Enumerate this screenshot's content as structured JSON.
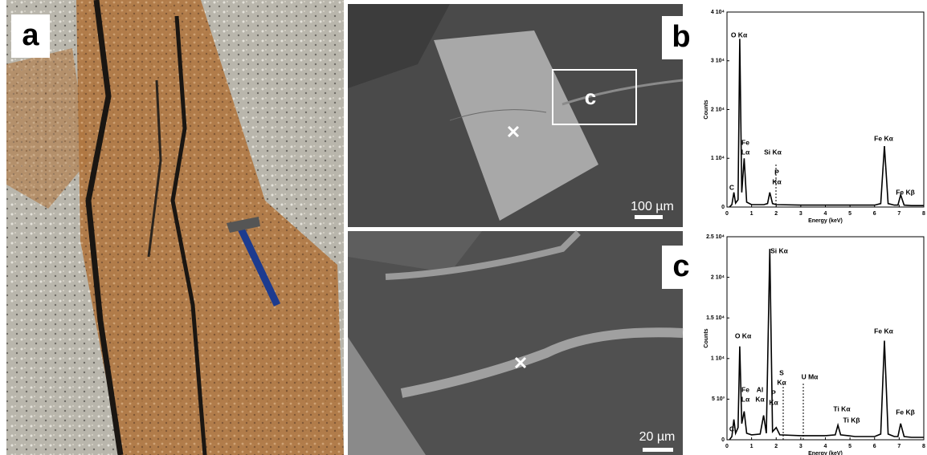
{
  "panels": {
    "a": {
      "label": "a"
    },
    "b": {
      "label": "b",
      "inset_label": "c",
      "scale_bar": "100 µm"
    },
    "c": {
      "label": "c",
      "scale_bar": "20 µm"
    }
  },
  "chart_data": [
    {
      "type": "line",
      "x_label": "Energy (keV)",
      "y_label": "Counts",
      "color": "#000000",
      "x": [
        0.1,
        0.2,
        0.28,
        0.35,
        0.45,
        0.52,
        0.6,
        0.7,
        0.8,
        1.0,
        1.5,
        1.65,
        1.74,
        1.85,
        2.0,
        3,
        4,
        5,
        6,
        6.25,
        6.4,
        6.55,
        6.8,
        6.95,
        7.06,
        7.2,
        7.5,
        8
      ],
      "values": [
        0,
        500,
        3000,
        800,
        1500,
        34500,
        3000,
        10000,
        1000,
        500,
        500,
        700,
        3000,
        700,
        500,
        400,
        400,
        400,
        400,
        700,
        12500,
        700,
        400,
        400,
        2500,
        400,
        300,
        300
      ],
      "xlim": [
        0,
        8
      ],
      "xticks": [
        0,
        1,
        2,
        3,
        4,
        5,
        6,
        7,
        8
      ],
      "ylim": [
        0,
        40000
      ],
      "yticks": [
        0,
        {
          "value": 10000,
          "label": "1 10⁴"
        },
        {
          "value": 20000,
          "label": "2 10⁴"
        },
        {
          "value": 30000,
          "label": "3 10⁴"
        },
        {
          "value": 40000,
          "label": "4 10⁴"
        }
      ],
      "annotations": [
        [
          "O Kα"
        ],
        [
          "Fe",
          "Lα"
        ],
        [
          "Si Kα"
        ],
        [
          "P",
          "Kα"
        ],
        [
          "C"
        ],
        [
          "Fe Kα"
        ],
        [
          "Fe Kβ"
        ]
      ]
    },
    {
      "type": "line",
      "x_label": "Energy (keV)",
      "y_label": "Counts",
      "color": "#000000",
      "x": [
        0.1,
        0.2,
        0.28,
        0.35,
        0.45,
        0.52,
        0.6,
        0.7,
        0.8,
        1.0,
        1.35,
        1.49,
        1.6,
        1.74,
        1.85,
        2.0,
        2.15,
        3,
        4,
        4.4,
        4.51,
        4.62,
        4.93,
        5.2,
        6,
        6.25,
        6.4,
        6.55,
        6.8,
        6.95,
        7.06,
        7.2,
        7.5,
        8
      ],
      "values": [
        0,
        400,
        2500,
        800,
        1500,
        11500,
        2000,
        3500,
        800,
        600,
        700,
        3000,
        800,
        23500,
        1000,
        1500,
        600,
        500,
        500,
        600,
        1800,
        600,
        500,
        400,
        400,
        700,
        12200,
        700,
        400,
        400,
        2000,
        400,
        300,
        300
      ],
      "xlim": [
        0,
        8
      ],
      "xticks": [
        0,
        1,
        2,
        3,
        4,
        5,
        6,
        7,
        8
      ],
      "ylim": [
        0,
        25000
      ],
      "yticks": [
        0,
        {
          "value": 5000,
          "label": "5 10³"
        },
        {
          "value": 10000,
          "label": "1 10⁴"
        },
        {
          "value": 15000,
          "label": "1.5 10⁴"
        },
        {
          "value": 20000,
          "label": "2 10⁴"
        },
        {
          "value": 25000,
          "label": "2.5 10⁴"
        }
      ],
      "annotations": [
        [
          "Si Kα"
        ],
        [
          "O Kα"
        ],
        [
          "Fe",
          "Lα"
        ],
        [
          "Al",
          "Kα"
        ],
        [
          "P",
          "Kα"
        ],
        [
          "S",
          "Kα"
        ],
        [
          "U Mα"
        ],
        [
          "C"
        ],
        [
          "Ti Kα"
        ],
        [
          "Ti Kβ"
        ],
        [
          "Fe Kα"
        ],
        [
          "Fe Kβ"
        ]
      ]
    }
  ]
}
